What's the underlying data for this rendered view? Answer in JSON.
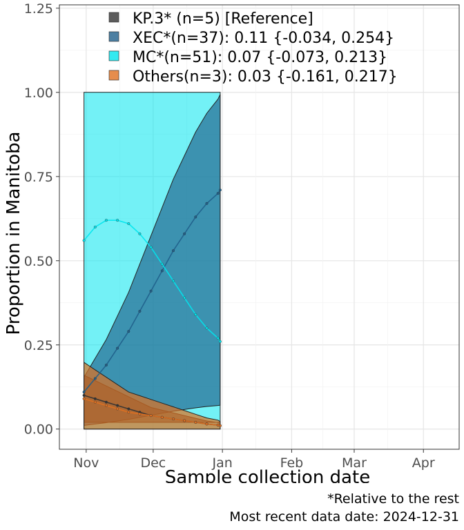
{
  "chart_data": {
    "type": "area",
    "xlabel": "Sample collection date",
    "ylabel": "Proportion in Manitoba",
    "x_ticks": [
      "Nov",
      "Dec",
      "Jan",
      "Feb",
      "Mar",
      "Apr"
    ],
    "x_tick_dates": [
      "2024-11-01",
      "2024-12-01",
      "2025-01-01",
      "2025-02-01",
      "2025-03-01",
      "2025-04-01"
    ],
    "xlim": [
      "2024-10-20",
      "2025-04-17"
    ],
    "y_ticks": [
      "0.00",
      "0.25",
      "0.50",
      "0.75",
      "1.00",
      "1.25"
    ],
    "ylim": [
      -0.06,
      1.26
    ],
    "grid": true,
    "legend_position": "top-left",
    "series": [
      {
        "name": "KP.3* (n=5)  [Reference]",
        "color": "#333333",
        "dates": [
          "2024-10-31",
          "2024-11-05",
          "2024-11-10",
          "2024-11-15",
          "2024-11-20",
          "2024-11-25",
          "2024-11-30",
          "2024-12-05",
          "2024-12-10",
          "2024-12-15",
          "2024-12-20",
          "2024-12-25",
          "2024-12-30",
          "2024-12-31"
        ],
        "values": [
          0.1,
          0.09,
          0.08,
          0.07,
          0.06,
          0.05,
          0.04,
          0.035,
          0.03,
          0.025,
          0.02,
          0.015,
          0.012,
          0.01
        ]
      },
      {
        "name": "XEC*(n=37): 0.11 {-0.034, 0.254}",
        "color": "#1f5f8b",
        "dates": [
          "2024-10-31",
          "2024-11-05",
          "2024-11-10",
          "2024-11-15",
          "2024-11-20",
          "2024-11-25",
          "2024-11-30",
          "2024-12-05",
          "2024-12-10",
          "2024-12-15",
          "2024-12-20",
          "2024-12-25",
          "2024-12-30",
          "2024-12-31"
        ],
        "values": [
          0.11,
          0.15,
          0.19,
          0.24,
          0.29,
          0.35,
          0.41,
          0.47,
          0.53,
          0.58,
          0.63,
          0.67,
          0.7,
          0.71
        ]
      },
      {
        "name": "MC*(n=51): 0.07 {-0.073, 0.213}",
        "color": "#00e5ee",
        "dates": [
          "2024-10-31",
          "2024-11-05",
          "2024-11-10",
          "2024-11-15",
          "2024-11-20",
          "2024-11-25",
          "2024-11-30",
          "2024-12-05",
          "2024-12-10",
          "2024-12-15",
          "2024-12-20",
          "2024-12-25",
          "2024-12-30",
          "2024-12-31"
        ],
        "values": [
          0.56,
          0.6,
          0.62,
          0.62,
          0.61,
          0.58,
          0.54,
          0.49,
          0.44,
          0.39,
          0.34,
          0.3,
          0.27,
          0.26
        ]
      },
      {
        "name": "Others(n=3): 0.03 {-0.161, 0.217}",
        "color": "#e07020",
        "dates": [
          "2024-10-31",
          "2024-11-05",
          "2024-11-10",
          "2024-11-15",
          "2024-11-20",
          "2024-11-25",
          "2024-11-30",
          "2024-12-05",
          "2024-12-10",
          "2024-12-15",
          "2024-12-20",
          "2024-12-25",
          "2024-12-30",
          "2024-12-31"
        ],
        "values": [
          0.09,
          0.08,
          0.07,
          0.06,
          0.05,
          0.045,
          0.04,
          0.035,
          0.03,
          0.025,
          0.02,
          0.015,
          0.012,
          0.01
        ]
      }
    ]
  },
  "caption": {
    "line1": "*Relative to the rest",
    "line2": "Most recent data date: 2024-12-31"
  }
}
